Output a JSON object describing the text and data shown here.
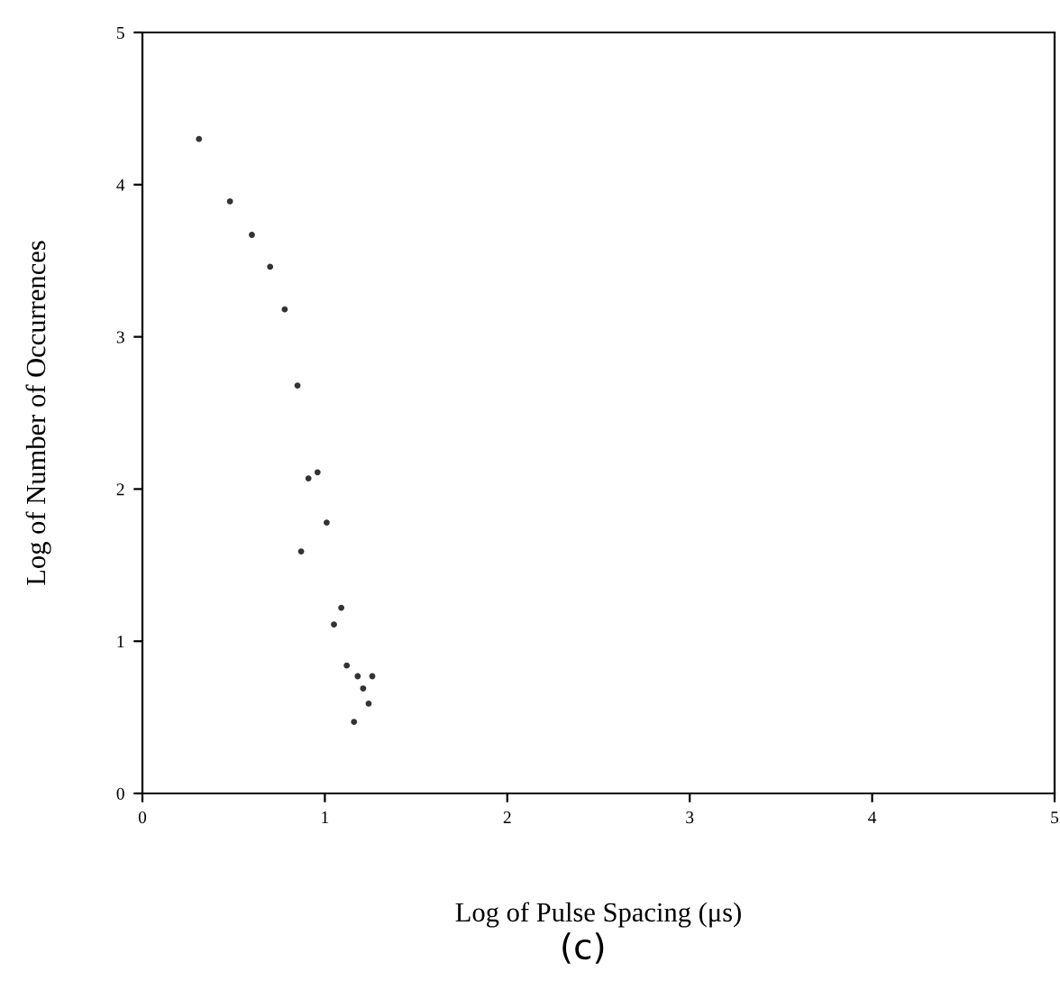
{
  "chart_data": {
    "type": "scatter",
    "xlabel": "Log of Pulse Spacing (μs)",
    "ylabel": "Log of Number of Occurrences",
    "annotations": [
      "(c)"
    ],
    "x": [
      0.31,
      0.48,
      0.6,
      0.7,
      0.78,
      0.85,
      0.87,
      0.91,
      0.96,
      1.01,
      1.09,
      1.05,
      1.12,
      1.18,
      1.26,
      1.21,
      1.24,
      1.16
    ],
    "series": [
      {
        "color": "#333333",
        "values": [
          4.3,
          3.89,
          3.67,
          3.46,
          3.18,
          2.68,
          1.59,
          2.07,
          2.11,
          1.78,
          1.22,
          1.11,
          0.84,
          0.77,
          0.77,
          0.69,
          0.59,
          0.47
        ]
      }
    ],
    "xlim": [
      0,
      5
    ],
    "ylim": [
      0,
      5
    ],
    "xticks": [
      0,
      1,
      2,
      3,
      4,
      5
    ],
    "yticks": [
      0,
      1,
      2,
      3,
      4,
      5
    ],
    "grid": false,
    "marker": "circle"
  }
}
